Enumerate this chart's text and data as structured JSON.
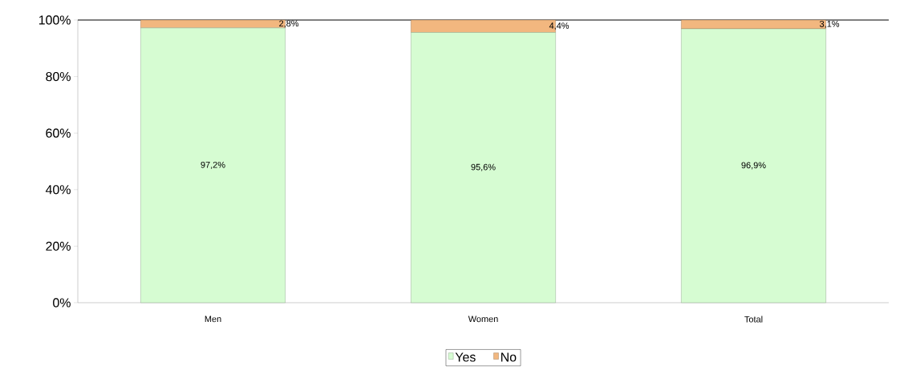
{
  "chart_data": {
    "type": "bar",
    "stacked": true,
    "categories": [
      "Men",
      "Women",
      "Total"
    ],
    "series": [
      {
        "name": "Yes",
        "color": "#d6fcd2",
        "values": [
          97.2,
          95.6,
          96.9
        ],
        "value_labels": [
          "97,2%",
          "95,6%",
          "96,9%"
        ]
      },
      {
        "name": "No",
        "color": "#f2b77f",
        "values": [
          2.8,
          4.4,
          3.1
        ],
        "value_labels": [
          "2,8%",
          "4,4%",
          "3,1%"
        ]
      }
    ],
    "ylim": [
      0,
      100
    ],
    "yticks": [
      {
        "value": 0,
        "label": "0%"
      },
      {
        "value": 20,
        "label": "20%"
      },
      {
        "value": 40,
        "label": "40%"
      },
      {
        "value": 60,
        "label": "60%"
      },
      {
        "value": 80,
        "label": "80%"
      },
      {
        "value": 100,
        "label": "100%"
      }
    ],
    "legend": "bottom",
    "grid": false
  }
}
